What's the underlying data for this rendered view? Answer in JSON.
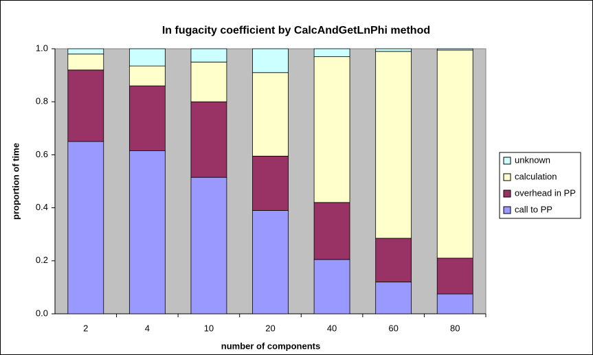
{
  "chart_data": {
    "type": "stacked_bar",
    "title": "In fugacity coefficient by CalcAndGetLnPhi method",
    "x_label": "number of components",
    "y_label": "proportion of time",
    "categories": [
      "2",
      "4",
      "10",
      "20",
      "40",
      "60",
      "80"
    ],
    "series": [
      {
        "name": "call to PP",
        "color": "#9999ff",
        "values": [
          0.65,
          0.615,
          0.515,
          0.39,
          0.205,
          0.12,
          0.075
        ]
      },
      {
        "name": "overhead in PP",
        "color": "#993366",
        "values": [
          0.27,
          0.245,
          0.285,
          0.205,
          0.215,
          0.165,
          0.135
        ]
      },
      {
        "name": "calculation",
        "color": "#ffffcc",
        "values": [
          0.06,
          0.075,
          0.15,
          0.315,
          0.55,
          0.705,
          0.785
        ]
      },
      {
        "name": "unknown",
        "color": "#ccffff",
        "values": [
          0.02,
          0.065,
          0.05,
          0.09,
          0.03,
          0.01,
          0.005
        ]
      }
    ],
    "ylim": [
      0,
      1
    ],
    "yticks": [
      {
        "value": 0,
        "label": "0.0"
      },
      {
        "value": 0.2,
        "label": "0.2"
      },
      {
        "value": 0.4,
        "label": "0.4"
      },
      {
        "value": 0.6,
        "label": "0.6"
      },
      {
        "value": 0.8,
        "label": "0.8"
      },
      {
        "value": 1,
        "label": "1.0"
      }
    ],
    "legend": "right",
    "background": "#c0c0c0"
  }
}
